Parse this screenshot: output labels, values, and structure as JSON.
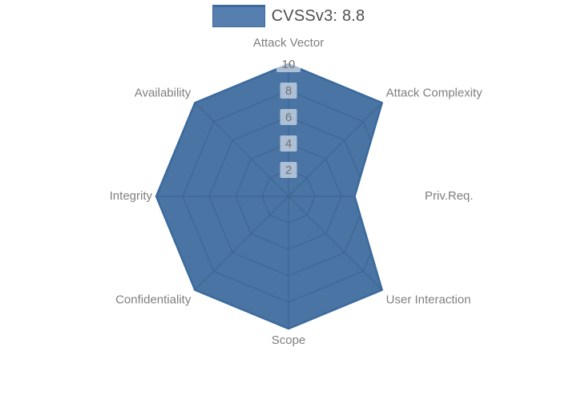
{
  "legend": {
    "series_label": "CVSSv3: 8.8"
  },
  "chart_data": {
    "type": "radar",
    "title": "",
    "categories": [
      "Attack Vector",
      "Attack Complexity",
      "Priv.Req.",
      "User Interaction",
      "Scope",
      "Confidentiality",
      "Integrity",
      "Availability"
    ],
    "series": [
      {
        "name": "CVSSv3: 8.8",
        "values": [
          10,
          10,
          5,
          10,
          10,
          10,
          10,
          10
        ],
        "fill_color": "#4a74a4",
        "line_color": "#3a6a9c"
      }
    ],
    "radial_axis": {
      "range": [
        0,
        10
      ],
      "ticks": [
        2,
        4,
        6,
        8,
        10
      ]
    },
    "start_angle_deg": 90,
    "direction": "clockwise",
    "grid": true,
    "grid_visible_inside_fill_only": true,
    "legend_position": "top-center",
    "colors": {
      "inner_grid": "#3e6491",
      "tick_text": "#737373",
      "tick_box_bg": "rgba(255,255,255,0.55)",
      "category_label": "#7f7f7f",
      "legend_text": "#4f4f4f",
      "legend_swatch": "#567fb0",
      "legend_swatch_border": "#3a6a9c"
    }
  }
}
